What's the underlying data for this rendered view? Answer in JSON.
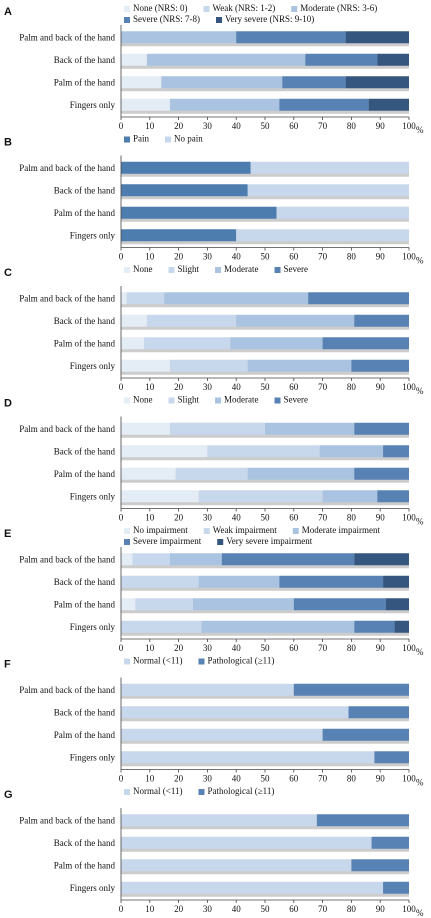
{
  "chart_data": [
    {
      "type": "bar",
      "panel": "A",
      "stacked": true,
      "orientation": "horizontal",
      "categories": [
        "Palm and back of the hand",
        "Back of the hand",
        "Palm of the hand",
        "Fingers only"
      ],
      "series": [
        {
          "name": "None (NRS: 0)",
          "color": "#e4ecf6",
          "values": [
            0,
            9,
            14,
            17
          ]
        },
        {
          "name": "Weak (NRS: 1-2)",
          "color": "#c8d8ec",
          "values": [
            0,
            0,
            0,
            0
          ]
        },
        {
          "name": "Moderate (NRS: 3-6)",
          "color": "#a9c3e1",
          "values": [
            40,
            55,
            42,
            38
          ]
        },
        {
          "name": "Severe (NRS: 7-8)",
          "color": "#5882b3",
          "values": [
            38,
            25,
            22,
            31
          ]
        },
        {
          "name": "Very severe (NRS: 9-10)",
          "color": "#35567f",
          "values": [
            22,
            11,
            22,
            14
          ]
        }
      ],
      "xlim": [
        0,
        100
      ],
      "xticks": [
        0,
        10,
        20,
        30,
        40,
        50,
        60,
        70,
        80,
        90,
        100
      ],
      "x_unit": "%"
    },
    {
      "type": "bar",
      "panel": "B",
      "stacked": true,
      "orientation": "horizontal",
      "categories": [
        "Palm and back of the hand",
        "Back of the hand",
        "Palm of the hand",
        "Fingers only"
      ],
      "series": [
        {
          "name": "Pain",
          "color": "#4d7cae",
          "values": [
            45,
            44,
            54,
            40
          ]
        },
        {
          "name": "No pain",
          "color": "#c8d8ec",
          "values": [
            55,
            56,
            46,
            60
          ]
        }
      ],
      "xlim": [
        0,
        100
      ],
      "xticks": [
        0,
        10,
        20,
        30,
        40,
        50,
        60,
        70,
        80,
        90,
        100
      ],
      "x_unit": "%"
    },
    {
      "type": "bar",
      "panel": "C",
      "stacked": true,
      "orientation": "horizontal",
      "categories": [
        "Palm and back of the hand",
        "Back of the hand",
        "Palm of the hand",
        "Fingers only"
      ],
      "series": [
        {
          "name": "None",
          "color": "#e4ecf6",
          "values": [
            2,
            9,
            8,
            17
          ]
        },
        {
          "name": "Slight",
          "color": "#c8d8ec",
          "values": [
            13,
            31,
            30,
            27
          ]
        },
        {
          "name": "Moderate",
          "color": "#a9c3e1",
          "values": [
            50,
            41,
            32,
            36
          ]
        },
        {
          "name": "Severe",
          "color": "#5882b3",
          "values": [
            35,
            19,
            30,
            20
          ]
        }
      ],
      "xlim": [
        0,
        100
      ],
      "xticks": [
        0,
        10,
        20,
        30,
        40,
        50,
        60,
        70,
        80,
        90,
        100
      ],
      "x_unit": "%"
    },
    {
      "type": "bar",
      "panel": "D",
      "stacked": true,
      "orientation": "horizontal",
      "categories": [
        "Palm and back of the hand",
        "Back of the hand",
        "Palm of the hand",
        "Fingers only"
      ],
      "series": [
        {
          "name": "None",
          "color": "#e4ecf6",
          "values": [
            17,
            30,
            19,
            27
          ]
        },
        {
          "name": "Slight",
          "color": "#c8d8ec",
          "values": [
            33,
            39,
            25,
            43
          ]
        },
        {
          "name": "Moderate",
          "color": "#a9c3e1",
          "values": [
            31,
            22,
            37,
            19
          ]
        },
        {
          "name": "Severe",
          "color": "#5882b3",
          "values": [
            19,
            9,
            19,
            11
          ]
        }
      ],
      "xlim": [
        0,
        100
      ],
      "xticks": [
        0,
        10,
        20,
        30,
        40,
        50,
        60,
        70,
        80,
        90,
        100
      ],
      "x_unit": "%"
    },
    {
      "type": "bar",
      "panel": "E",
      "stacked": true,
      "orientation": "horizontal",
      "categories": [
        "Palm and back of the hand",
        "Back of the hand",
        "Palm of the hand",
        "Fingers only"
      ],
      "series": [
        {
          "name": "No impairment",
          "color": "#e4ecf6",
          "values": [
            4,
            0,
            5,
            0
          ]
        },
        {
          "name": "Weak impairment",
          "color": "#c8d8ec",
          "values": [
            13,
            27,
            20,
            28
          ]
        },
        {
          "name": "Moderate impairment",
          "color": "#a9c3e1",
          "values": [
            18,
            28,
            35,
            53
          ]
        },
        {
          "name": "Severe impairment",
          "color": "#5882b3",
          "values": [
            46,
            36,
            32,
            14
          ]
        },
        {
          "name": "Very severe impairment",
          "color": "#35567f",
          "values": [
            19,
            9,
            8,
            5
          ]
        }
      ],
      "xlim": [
        0,
        100
      ],
      "xticks": [
        0,
        10,
        20,
        30,
        40,
        50,
        60,
        70,
        80,
        90,
        100
      ],
      "x_unit": "%"
    },
    {
      "type": "bar",
      "panel": "F",
      "stacked": true,
      "orientation": "horizontal",
      "categories": [
        "Palm and back of the hand",
        "Back of the hand",
        "Palm of the hand",
        "Fingers only"
      ],
      "series": [
        {
          "name": "Normal (<11)",
          "color": "#c8d8ec",
          "values": [
            60,
            79,
            70,
            88
          ]
        },
        {
          "name": "Pathological (≥11)",
          "color": "#5882b3",
          "values": [
            40,
            21,
            30,
            12
          ]
        }
      ],
      "xlim": [
        0,
        100
      ],
      "xticks": [
        0,
        10,
        20,
        30,
        40,
        50,
        60,
        70,
        80,
        90,
        100
      ],
      "x_unit": "%"
    },
    {
      "type": "bar",
      "panel": "G",
      "stacked": true,
      "orientation": "horizontal",
      "categories": [
        "Palm and back of the hand",
        "Back of the hand",
        "Palm of the hand",
        "Fingers only"
      ],
      "series": [
        {
          "name": "Normal (<11)",
          "color": "#c8d8ec",
          "values": [
            68,
            87,
            80,
            91
          ]
        },
        {
          "name": "Pathological (≥11)",
          "color": "#5882b3",
          "values": [
            32,
            13,
            20,
            9
          ]
        }
      ],
      "xlim": [
        0,
        100
      ],
      "xticks": [
        0,
        10,
        20,
        30,
        40,
        50,
        60,
        70,
        80,
        90,
        100
      ],
      "x_unit": "%"
    }
  ]
}
